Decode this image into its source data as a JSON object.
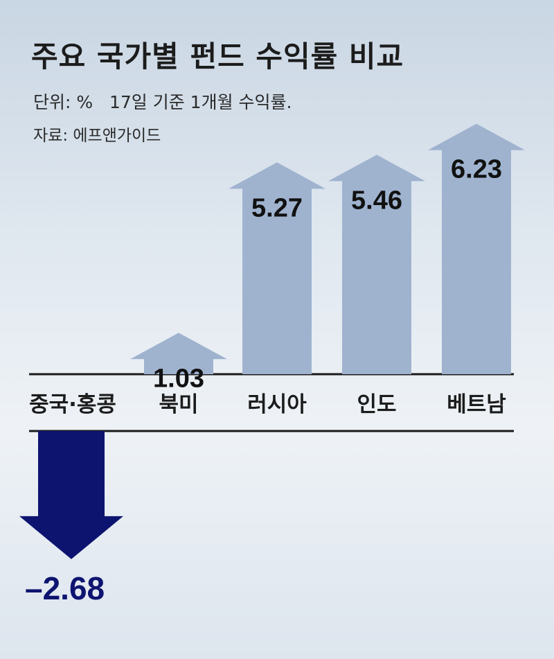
{
  "title": "주요 국가별 펀드 수익률 비교",
  "unit_note": "단위: %   17일 기준 1개월 수익률.",
  "source_note": "자료: 에프앤가이드",
  "colors": {
    "positive": "#9fb3cf",
    "negative": "#0d1470",
    "axis": "#1a1a1a"
  },
  "chart_data": {
    "type": "bar",
    "title": "주요 국가별 펀드 수익률 비교",
    "categories": [
      "중국·홍콩",
      "북미",
      "러시아",
      "인도",
      "베트남"
    ],
    "values": [
      -2.68,
      1.03,
      5.27,
      5.46,
      6.23
    ],
    "value_labels": [
      "–2.68",
      "1.03",
      "5.27",
      "5.46",
      "6.23"
    ],
    "ylabel": "%",
    "ylim": [
      -2.68,
      6.23
    ],
    "grid": false,
    "legend": false
  }
}
